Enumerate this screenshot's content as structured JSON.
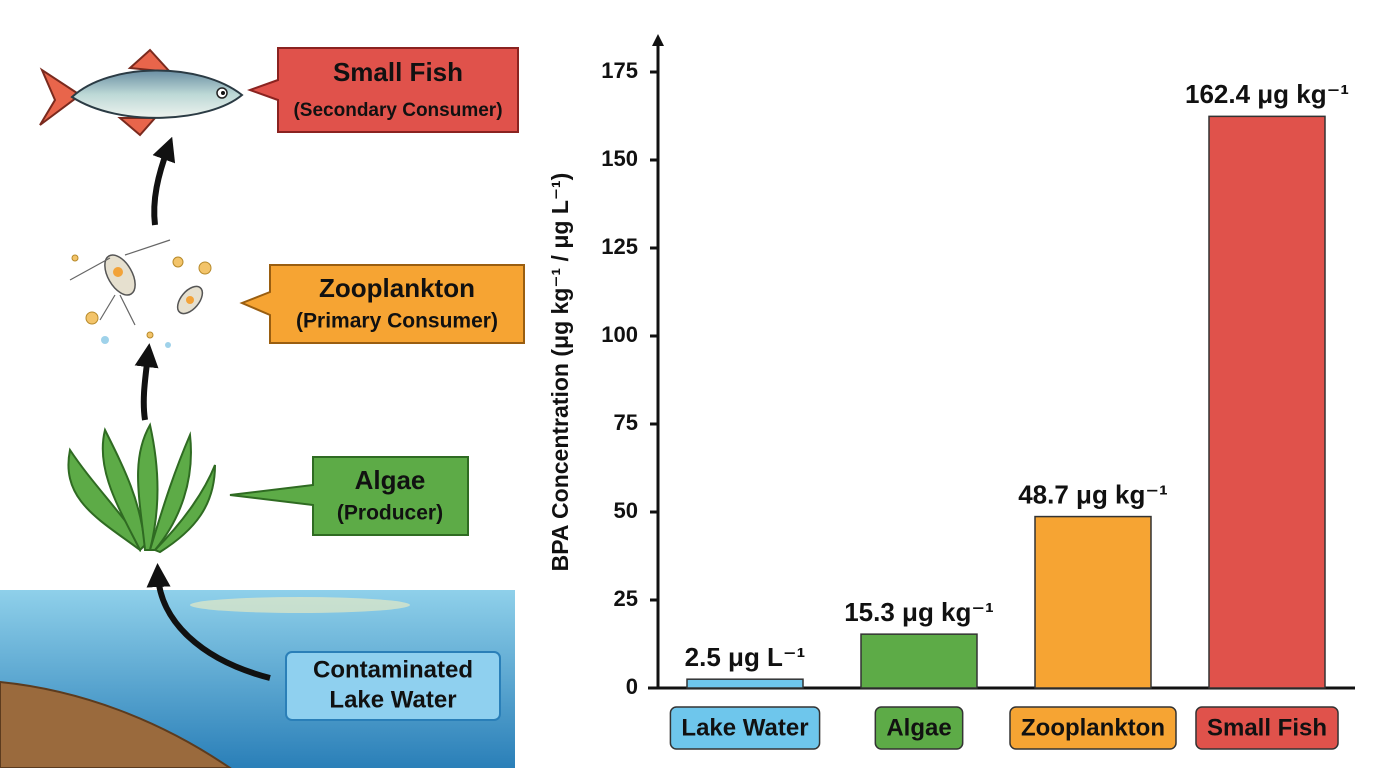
{
  "chart_data": {
    "type": "bar",
    "y_label": "BPA Concentration (μg kg⁻¹ / μg L⁻¹)",
    "categories": [
      "Lake Water",
      "Algae",
      "Zooplankton",
      "Small Fish"
    ],
    "values": [
      2.5,
      15.3,
      48.7,
      162.4
    ],
    "value_labels": [
      "2.5 μg L⁻¹",
      "15.3 μg kg⁻¹",
      "48.7 μg kg⁻¹",
      "162.4 μg kg⁻¹"
    ],
    "colors": [
      "#6ec6ec",
      "#5dab47",
      "#f6a433",
      "#e0524b"
    ],
    "ylim": [
      0,
      185
    ],
    "yticks": [
      0,
      25,
      50,
      75,
      100,
      125,
      150,
      175
    ],
    "grid": false
  },
  "food_chain": {
    "stages": [
      {
        "title": "Small Fish",
        "role": "(Secondary Consumer)"
      },
      {
        "title": "Zooplankton",
        "role": "(Primary Consumer)"
      },
      {
        "title": "Algae",
        "role": "(Producer)"
      }
    ],
    "source": [
      "Contaminated",
      "Lake Water"
    ]
  }
}
